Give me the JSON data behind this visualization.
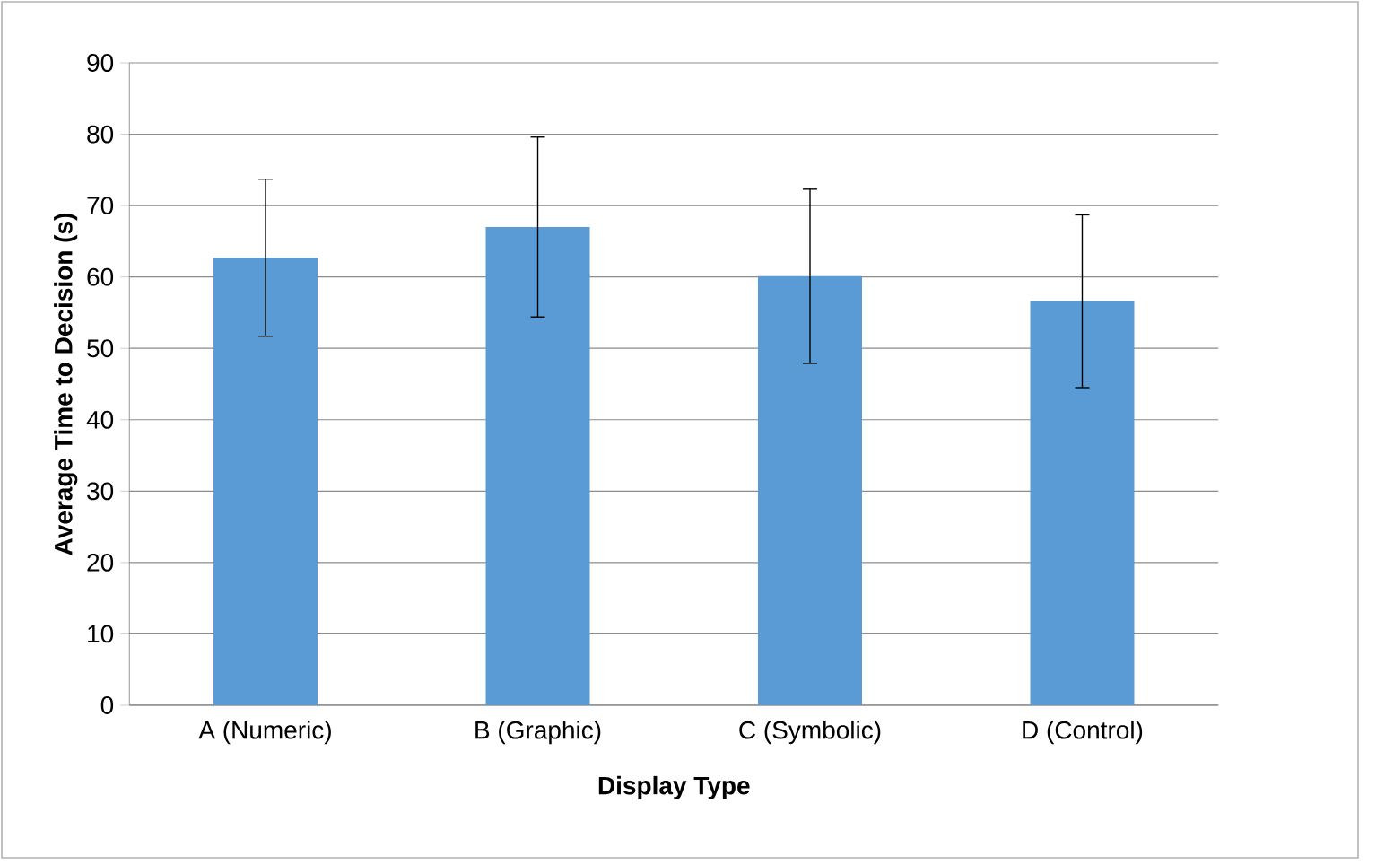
{
  "chart_data": {
    "type": "bar",
    "xlabel": "Display Type",
    "ylabel": "Average Time to Decision (s)",
    "categories": [
      "A (Numeric)",
      "B (Graphic)",
      "C (Symbolic)",
      "D (Control)"
    ],
    "values": [
      62.7,
      67.0,
      60.1,
      56.6
    ],
    "errors": [
      11,
      12.6,
      12.2,
      12.1
    ],
    "color": "#5b9bd5",
    "ylim": [
      0,
      90
    ],
    "yticks": [
      0,
      10,
      20,
      30,
      40,
      50,
      60,
      70,
      80,
      90
    ],
    "grid": "y"
  }
}
